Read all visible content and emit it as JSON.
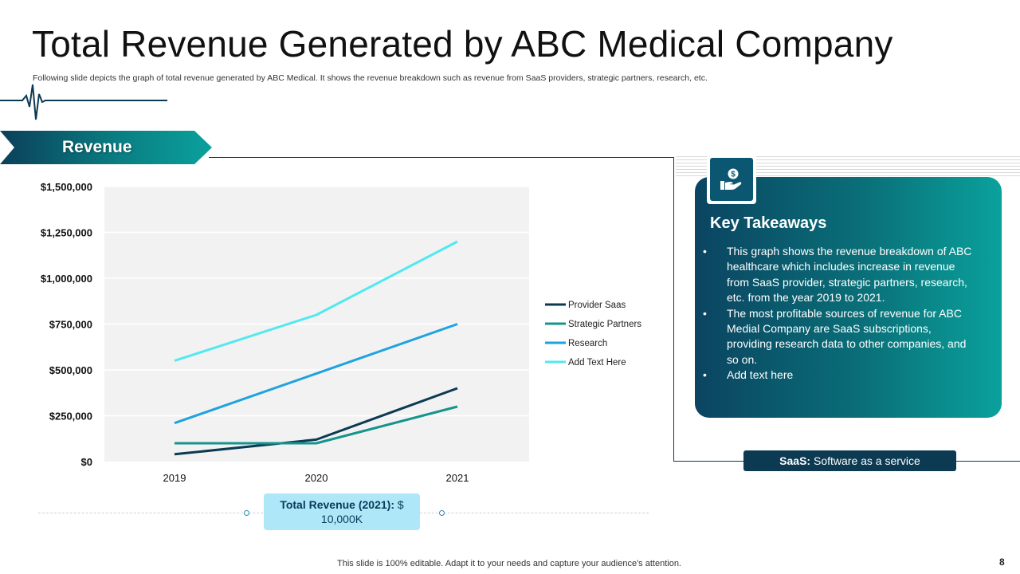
{
  "slide": {
    "title": "Total Revenue Generated by ABC Medical Company",
    "subtitle": "Following slide depicts the graph of total revenue generated by ABC Medical. It shows the revenue breakdown such as revenue from SaaS providers, strategic partners, research, etc.",
    "section_label": "Revenue",
    "footer": "This slide is 100% editable. Adapt it to your needs and capture your audience's attention.",
    "page_number": "8"
  },
  "total_revenue": {
    "label": "Total Revenue (2021):",
    "value": "$ 10,000K"
  },
  "key_takeaways": {
    "title": "Key Takeaways",
    "icon": "money-hand-icon",
    "items": [
      "This graph shows the revenue breakdown of ABC healthcare which includes increase in revenue from SaaS provider, strategic partners, research, etc. from the year 2019 to 2021.",
      "The most profitable sources of revenue for ABC Medial Company are SaaS subscriptions, providing research data to other companies, and so on.",
      "Add text here"
    ]
  },
  "saas_note": {
    "term": "SaaS:",
    "definition": "Software as a service"
  },
  "colors": {
    "dark_navy": "#0c3a52",
    "teal": "#0a9696",
    "provider_saas": "#0b3a52",
    "strategic_partners": "#15948c",
    "research": "#1fa2e0",
    "add_text_here": "#52e8f0"
  },
  "chart_data": {
    "type": "line",
    "title": "",
    "xlabel": "",
    "ylabel": "",
    "categories": [
      "2019",
      "2020",
      "2021"
    ],
    "ylim": [
      0,
      1500000
    ],
    "y_ticks": [
      0,
      250000,
      500000,
      750000,
      1000000,
      1250000,
      1500000
    ],
    "y_tick_labels": [
      "$0",
      "$250,000",
      "$500,000",
      "$750,000",
      "$1,000,000",
      "$1,250,000",
      "$1,500,000"
    ],
    "grid": true,
    "legend_position": "right",
    "series": [
      {
        "name": "Provider Saas",
        "values": [
          40000,
          120000,
          400000
        ]
      },
      {
        "name": "Strategic Partners",
        "values": [
          100000,
          100000,
          300000
        ]
      },
      {
        "name": "Research",
        "values": [
          210000,
          480000,
          750000
        ]
      },
      {
        "name": "Add Text Here",
        "values": [
          550000,
          800000,
          1200000
        ]
      }
    ]
  }
}
